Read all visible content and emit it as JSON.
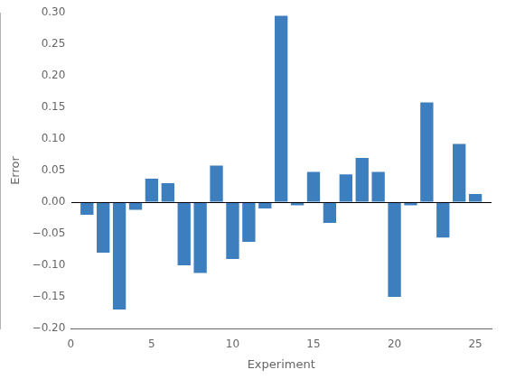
{
  "chart_data": {
    "type": "bar",
    "x": [
      1,
      2,
      3,
      4,
      5,
      6,
      7,
      8,
      9,
      10,
      11,
      12,
      13,
      14,
      15,
      16,
      17,
      18,
      19,
      20,
      21,
      22,
      23,
      24,
      25
    ],
    "values": [
      -0.02,
      -0.08,
      -0.17,
      -0.012,
      0.037,
      0.03,
      -0.1,
      -0.112,
      0.058,
      -0.09,
      -0.063,
      -0.01,
      0.295,
      -0.005,
      0.048,
      -0.033,
      0.044,
      0.07,
      0.048,
      -0.15,
      -0.005,
      0.158,
      -0.056,
      0.092,
      0.013
    ],
    "color": "#3d7ebf",
    "xlabel": "Experiment",
    "ylabel": "Error",
    "xlim": [
      0,
      26
    ],
    "ylim": [
      -0.2,
      0.3
    ],
    "xticks": [
      0,
      5,
      10,
      15,
      20,
      25
    ],
    "yticks": [
      {
        "value": -0.2,
        "label": "−0.20"
      },
      {
        "value": -0.15,
        "label": "−0.15"
      },
      {
        "value": -0.1,
        "label": "−0.10"
      },
      {
        "value": -0.05,
        "label": "−0.05"
      },
      {
        "value": 0.0,
        "label": "0.00"
      },
      0.05,
      {
        "value": 0.1,
        "label": "0.10"
      },
      0.15,
      {
        "value": 0.2,
        "label": "0.20"
      },
      0.25,
      {
        "value": 0.3,
        "label": "0.30"
      }
    ],
    "grid": false
  }
}
